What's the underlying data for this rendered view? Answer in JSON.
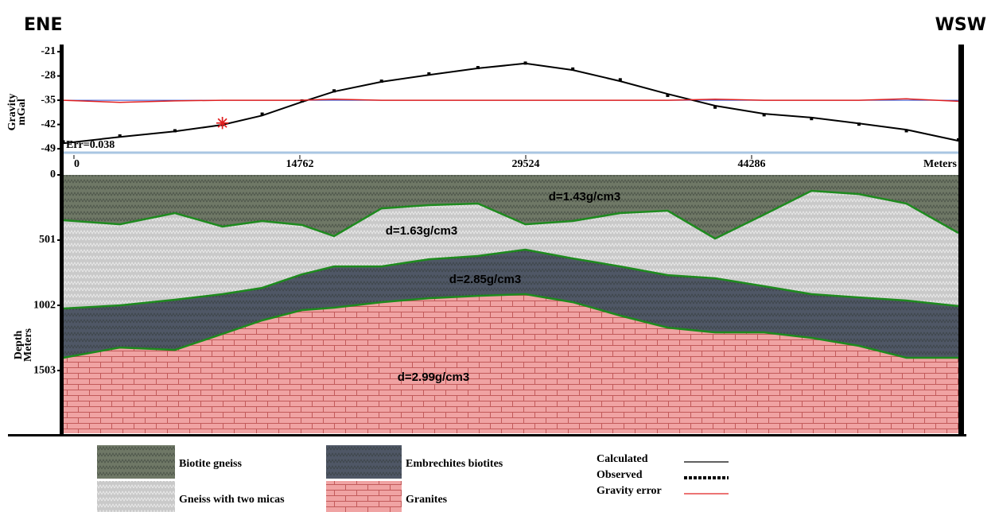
{
  "chart_data": [
    {
      "type": "line",
      "left_label": "ENE",
      "right_label": "WSW",
      "ylabel": "Gravity",
      "yunit": "mGal",
      "xlabel": "Meters",
      "annotation": "Err=0.038",
      "x": [
        -700,
        3000,
        6600,
        9700,
        12300,
        14900,
        17000,
        20100,
        23200,
        26400,
        29500,
        32600,
        35700,
        38800,
        41900,
        45100,
        48200,
        51300,
        54400,
        57800
      ],
      "series": [
        {
          "name": "Calculated",
          "color": "#000000",
          "values": [
            -47.4,
            -45.6,
            -44.0,
            -42.1,
            -39.4,
            -35.5,
            -32.5,
            -29.7,
            -27.7,
            -25.8,
            -24.4,
            -26.3,
            -29.5,
            -33.2,
            -36.6,
            -38.9,
            -40.0,
            -41.7,
            -43.5,
            -46.7
          ]
        },
        {
          "name": "Observed",
          "color": "#000000",
          "values": [
            -47.0,
            -45.3,
            -43.8,
            -42.0,
            -39.0,
            -35.2,
            -32.3,
            -29.5,
            -27.4,
            -25.6,
            -24.3,
            -26.0,
            -29.1,
            -33.6,
            -37.0,
            -39.2,
            -40.3,
            -41.9,
            -43.8,
            -46.4
          ]
        },
        {
          "name": "Gravity error",
          "color": "#e02020",
          "values": [
            -35.0,
            -35.6,
            -35.2,
            -35.0,
            -35.0,
            -35.0,
            -34.7,
            -35.0,
            -35.0,
            -35.0,
            -35.0,
            -35.0,
            -35.0,
            -35.0,
            -34.7,
            -35.0,
            -35.0,
            -35.0,
            -34.6,
            -35.3
          ]
        }
      ],
      "xlim": [
        -700,
        57800
      ],
      "ylim": [
        -50.8,
        -19.4
      ],
      "xticks": [
        0,
        14762,
        29524,
        44286
      ],
      "yticks": [
        -21,
        -28,
        -35,
        -42,
        -49
      ]
    },
    {
      "type": "cross-section",
      "ylabel": "Depth",
      "yunit": "Meters",
      "x": [
        -700,
        3000,
        6600,
        9700,
        12300,
        14900,
        17000,
        20100,
        23200,
        26400,
        29500,
        32600,
        35700,
        38800,
        41900,
        45100,
        48200,
        51300,
        54400,
        57800
      ],
      "boundaries": [
        [
          348,
          379,
          293,
          397,
          354,
          385,
          470,
          257,
          232,
          220,
          379,
          354,
          293,
          275,
          489,
          305,
          122,
          147,
          220,
          446
        ],
        [
          1026,
          1002,
          959,
          916,
          868,
          764,
          703,
          703,
          648,
          623,
          574,
          642,
          703,
          770,
          794,
          855,
          916,
          941,
          965,
          1008
        ],
        [
          1405,
          1326,
          1344,
          1222,
          1118,
          1039,
          1020,
          978,
          947,
          929,
          916,
          978,
          1081,
          1173,
          1210,
          1210,
          1252,
          1313,
          1405,
          1405
        ]
      ],
      "layers": [
        {
          "name": "Biotite gneiss",
          "color": "#6f7866",
          "label": "d=1.43g/cm3"
        },
        {
          "name": "Gneiss with two micas",
          "color": "#c9c9c9",
          "label": "d=1.63g/cm3"
        },
        {
          "name": "Embrechites biotites",
          "color": "#4f5766",
          "label": "d=2.85g/cm3"
        },
        {
          "name": "Granites",
          "color": "#f0a3a3",
          "label": "d=2.99g/cm3"
        }
      ],
      "xlim": [
        -700,
        57800
      ],
      "ylim": [
        0,
        1985
      ],
      "yticks": [
        0,
        501,
        1002,
        1503
      ]
    }
  ]
}
